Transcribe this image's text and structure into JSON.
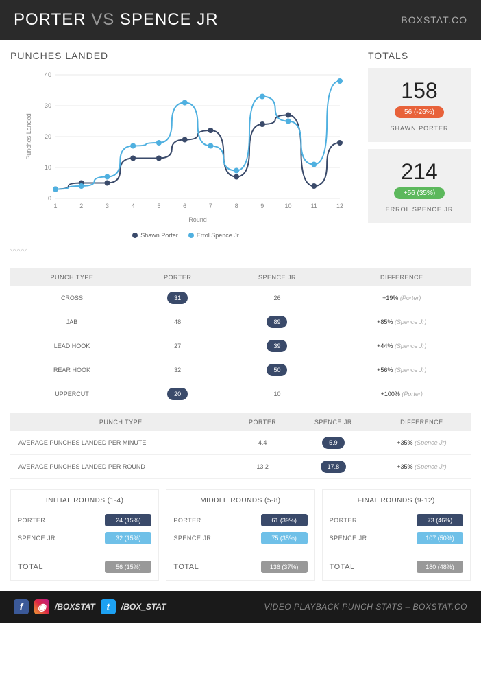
{
  "header": {
    "fighter1": "PORTER",
    "vs": "VS",
    "fighter2": "SPENCE JR",
    "brand": "BOXSTAT.CO"
  },
  "chart": {
    "title": "PUNCHES LANDED",
    "type": "line",
    "xlabel": "Round",
    "ylabel": "Punches Landed",
    "rounds": [
      1,
      2,
      3,
      4,
      5,
      6,
      7,
      8,
      9,
      10,
      11,
      12
    ],
    "ylim": [
      0,
      40
    ],
    "ytick_step": 10,
    "series": [
      {
        "name": "Shawn Porter",
        "color": "#3a4a6a",
        "values": [
          3,
          5,
          5,
          13,
          13,
          19,
          22,
          7,
          24,
          27,
          4,
          18
        ]
      },
      {
        "name": "Errol Spence Jr",
        "color": "#4fb0e0",
        "values": [
          3,
          4,
          7,
          17,
          18,
          31,
          17,
          9,
          33,
          25,
          11,
          38
        ]
      }
    ],
    "line_width": 2,
    "marker_size": 4,
    "grid_color": "#e8e8e8",
    "background_color": "#ffffff"
  },
  "totals": {
    "title": "TOTALS",
    "cards": [
      {
        "value": "158",
        "badge": "56 (-26%)",
        "badge_color": "#e8623a",
        "name": "SHAWN PORTER"
      },
      {
        "value": "214",
        "badge": "+56 (35%)",
        "badge_color": "#5cb85c",
        "name": "ERROL SPENCE JR"
      }
    ]
  },
  "punch_table": {
    "headers": [
      "PUNCH TYPE",
      "PORTER",
      "SPENCE JR",
      "DIFFERENCE"
    ],
    "rows": [
      {
        "type": "CROSS",
        "porter": "31",
        "spence": "26",
        "porter_win": true,
        "diff_pct": "+19%",
        "diff_who": "(Porter)"
      },
      {
        "type": "JAB",
        "porter": "48",
        "spence": "89",
        "porter_win": false,
        "diff_pct": "+85%",
        "diff_who": "(Spence Jr)"
      },
      {
        "type": "LEAD HOOK",
        "porter": "27",
        "spence": "39",
        "porter_win": false,
        "diff_pct": "+44%",
        "diff_who": "(Spence Jr)"
      },
      {
        "type": "REAR HOOK",
        "porter": "32",
        "spence": "50",
        "porter_win": false,
        "diff_pct": "+56%",
        "diff_who": "(Spence Jr)"
      },
      {
        "type": "UPPERCUT",
        "porter": "20",
        "spence": "10",
        "porter_win": true,
        "diff_pct": "+100%",
        "diff_who": "(Porter)"
      }
    ]
  },
  "avg_table": {
    "headers": [
      "PUNCH TYPE",
      "PORTER",
      "SPENCE JR",
      "DIFFERENCE"
    ],
    "rows": [
      {
        "type": "AVERAGE PUNCHES LANDED PER MINUTE",
        "porter": "4.4",
        "spence": "5.9",
        "diff_pct": "+35%",
        "diff_who": "(Spence Jr)"
      },
      {
        "type": "AVERAGE PUNCHES LANDED PER ROUND",
        "porter": "13.2",
        "spence": "17.8",
        "diff_pct": "+35%",
        "diff_who": "(Spence Jr)"
      }
    ]
  },
  "segments": [
    {
      "title": "INITIAL ROUNDS (1-4)",
      "rows": [
        {
          "label": "PORTER",
          "value": "24 (15%)",
          "color": "#3a4a6a"
        },
        {
          "label": "SPENCE JR",
          "value": "32 (15%)",
          "color": "#6fc0e8"
        }
      ],
      "total_label": "TOTAL",
      "total_value": "56 (15%)",
      "total_color": "#999"
    },
    {
      "title": "MIDDLE ROUNDS (5-8)",
      "rows": [
        {
          "label": "PORTER",
          "value": "61 (39%)",
          "color": "#3a4a6a"
        },
        {
          "label": "SPENCE JR",
          "value": "75 (35%)",
          "color": "#6fc0e8"
        }
      ],
      "total_label": "TOTAL",
      "total_value": "136 (37%)",
      "total_color": "#999"
    },
    {
      "title": "FINAL ROUNDS (9-12)",
      "rows": [
        {
          "label": "PORTER",
          "value": "73 (46%)",
          "color": "#3a4a6a"
        },
        {
          "label": "SPENCE JR",
          "value": "107 (50%)",
          "color": "#6fc0e8"
        }
      ],
      "total_label": "TOTAL",
      "total_value": "180 (48%)",
      "total_color": "#999"
    }
  ],
  "footer": {
    "handle1": "/BOXSTAT",
    "handle2": "/BOX_STAT",
    "tagline": "VIDEO PLAYBACK PUNCH STATS – BOXSTAT.CO"
  }
}
